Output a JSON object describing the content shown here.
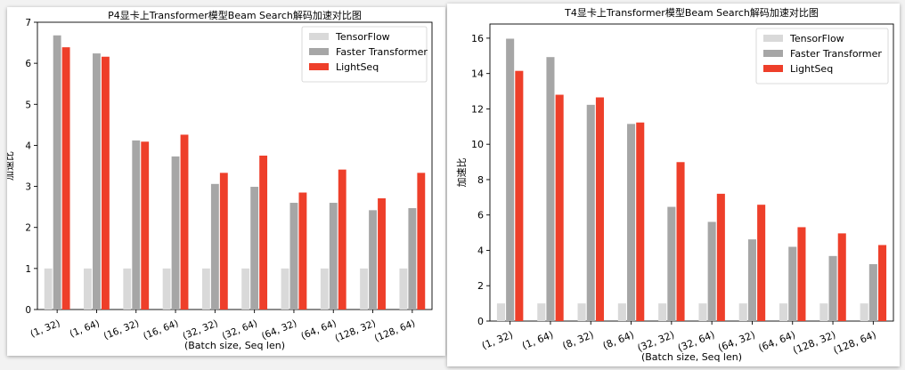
{
  "chart_data": [
    {
      "type": "bar",
      "title": "P4显卡上Transformer模型Beam Search解码加速对比图",
      "xlabel": "(Batch size, Seq len)",
      "ylabel": "加速比",
      "categories": [
        "(1, 32)",
        "(1, 64)",
        "(16, 32)",
        "(16, 64)",
        "(32, 32)",
        "(32, 64)",
        "(64, 32)",
        "(64, 64)",
        "(128, 32)",
        "(128, 64)"
      ],
      "ylim": [
        0,
        7
      ],
      "yticks": [
        0,
        1,
        2,
        3,
        4,
        5,
        6,
        7
      ],
      "legend_position": "top-right",
      "series": [
        {
          "name": "TensorFlow",
          "color": "#d9d9d9",
          "values": [
            1,
            1,
            1,
            1,
            1,
            1,
            1,
            1,
            1,
            1
          ]
        },
        {
          "name": "Faster Transformer",
          "color": "#a6a6a6",
          "values": [
            6.68,
            6.24,
            4.12,
            3.73,
            3.06,
            2.99,
            2.6,
            2.6,
            2.42,
            2.47
          ]
        },
        {
          "name": "LightSeq",
          "color": "#ee3f2a",
          "values": [
            6.39,
            6.16,
            4.09,
            4.26,
            3.33,
            3.75,
            2.85,
            3.41,
            2.71,
            3.33
          ]
        }
      ]
    },
    {
      "type": "bar",
      "title": "T4显卡上Transformer模型Beam Search解码加速对比图",
      "xlabel": "(Batch size, Seq len)",
      "ylabel": "加速比",
      "categories": [
        "(1, 32)",
        "(1, 64)",
        "(8, 32)",
        "(8, 64)",
        "(32, 32)",
        "(32, 64)",
        "(64, 32)",
        "(64, 64)",
        "(128, 32)",
        "(128, 64)"
      ],
      "ylim": [
        0,
        16.8
      ],
      "yticks": [
        0,
        2,
        4,
        6,
        8,
        10,
        12,
        14,
        16
      ],
      "legend_position": "top-right",
      "series": [
        {
          "name": "TensorFlow",
          "color": "#d9d9d9",
          "values": [
            1,
            1,
            1,
            1,
            1,
            1,
            1,
            1,
            1,
            1
          ]
        },
        {
          "name": "Faster Transformer",
          "color": "#a6a6a6",
          "values": [
            15.97,
            14.93,
            12.23,
            11.15,
            6.46,
            5.61,
            4.62,
            4.2,
            3.68,
            3.22
          ]
        },
        {
          "name": "LightSeq",
          "color": "#ee3f2a",
          "values": [
            14.15,
            12.8,
            12.65,
            11.23,
            8.99,
            7.2,
            6.58,
            5.31,
            4.96,
            4.3
          ]
        }
      ]
    }
  ]
}
